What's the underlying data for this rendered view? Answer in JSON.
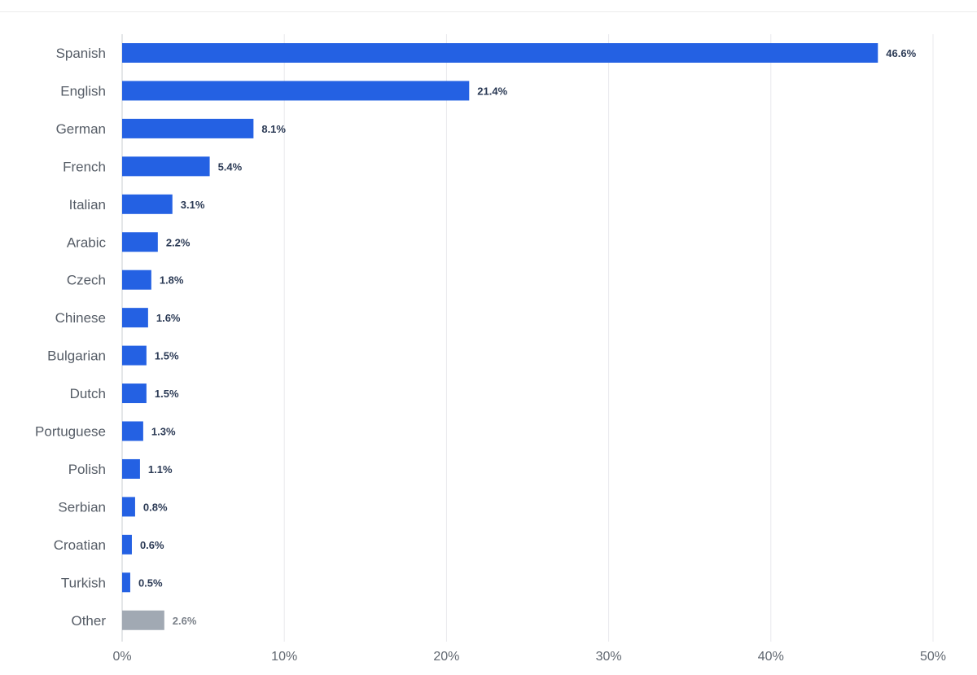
{
  "chart_data": {
    "type": "bar",
    "orientation": "horizontal",
    "categories": [
      "Spanish",
      "English",
      "German",
      "French",
      "Italian",
      "Arabic",
      "Czech",
      "Chinese",
      "Bulgarian",
      "Dutch",
      "Portuguese",
      "Polish",
      "Serbian",
      "Croatian",
      "Turkish",
      "Other"
    ],
    "values": [
      46.6,
      21.4,
      8.1,
      5.4,
      3.1,
      2.2,
      1.8,
      1.6,
      1.5,
      1.5,
      1.3,
      1.1,
      0.8,
      0.6,
      0.5,
      2.6
    ],
    "value_labels": [
      "46.6%",
      "21.4%",
      "8.1%",
      "5.4%",
      "3.1%",
      "2.2%",
      "1.8%",
      "1.6%",
      "1.5%",
      "1.5%",
      "1.3%",
      "1.1%",
      "0.8%",
      "0.6%",
      "0.5%",
      "2.6%"
    ],
    "xlim": [
      0,
      50
    ],
    "x_ticks": [
      0,
      10,
      20,
      30,
      40,
      50
    ],
    "x_tick_labels": [
      "0%",
      "10%",
      "20%",
      "30%",
      "40%",
      "50%"
    ],
    "grid": true,
    "legend": "none",
    "colors": {
      "bar": "#2461e3",
      "other_bar": "#a1a9b3",
      "value_label": "#2b3a55",
      "other_value_label": "#7a8089",
      "grid": "#e8e8ec",
      "axis": "#c8ccd2"
    }
  }
}
